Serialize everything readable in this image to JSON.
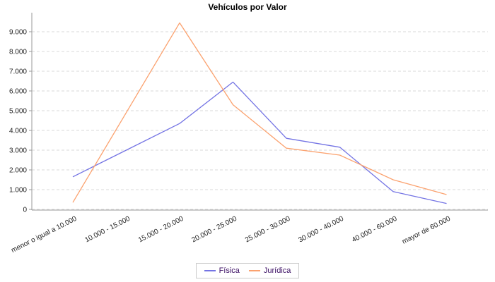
{
  "chart_data": {
    "type": "line",
    "title": "Vehículos por Valor",
    "categories": [
      "menor o igual a 10.000",
      "10.000 - 15.000",
      "15.000 - 20.000",
      "20.000 - 25.000",
      "25.000 - 30.000",
      "30.000 - 40.000",
      "40.000 - 60.000",
      "mayor de 60.000"
    ],
    "series": [
      {
        "name": "Física",
        "color": "#7474e4",
        "values": [
          1650,
          3000,
          4350,
          6450,
          3600,
          3150,
          900,
          300
        ]
      },
      {
        "name": "Jurídica",
        "color": "#fba26f",
        "values": [
          350,
          4900,
          9450,
          5300,
          3100,
          2750,
          1500,
          750
        ]
      }
    ],
    "xlabel": "",
    "ylabel": "",
    "ylim": [
      0,
      9500
    ],
    "yticks": [
      0,
      1000,
      2000,
      3000,
      4000,
      5000,
      6000,
      7000,
      8000,
      9000
    ],
    "ytick_labels": [
      "0",
      "1.000",
      "2.000",
      "3.000",
      "4.000",
      "5.000",
      "6.000",
      "7.000",
      "8.000",
      "9.000"
    ],
    "grid": true,
    "grid_style": "dashed",
    "x_label_rotation_deg": -27,
    "legend_position": "bottom-center"
  },
  "colors": {
    "background": "#ffffff",
    "grid_line": "#d9d9d9",
    "axis_line": "#9a9a9a",
    "tick_label": "#222222",
    "title_text": "#000000",
    "legend_text": "#3a0d63",
    "legend_border": "#cccccc",
    "series_fisica": "#7474e4",
    "series_juridica": "#fba26f"
  }
}
